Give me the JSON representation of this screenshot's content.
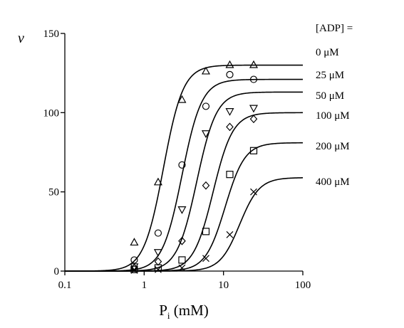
{
  "chart_data": {
    "type": "scatter",
    "x_scale": "log",
    "xlim": [
      0.1,
      100
    ],
    "ylim": [
      0,
      150
    ],
    "xlabel_base": "P",
    "xlabel_sub": "i",
    "xlabel_rest": " (mM)",
    "ylabel": "v",
    "x_ticks": [
      {
        "value": 0.1,
        "label": "0.1"
      },
      {
        "value": 1,
        "label": "1"
      },
      {
        "value": 10,
        "label": "10"
      },
      {
        "value": 100,
        "label": "100"
      }
    ],
    "y_ticks": [
      {
        "value": 0,
        "label": "0"
      },
      {
        "value": 50,
        "label": "50"
      },
      {
        "value": 100,
        "label": "100"
      },
      {
        "value": 150,
        "label": "150"
      }
    ],
    "legend_title": "[ADP] =",
    "grid": false,
    "series": [
      {
        "name": "0 μM",
        "marker": "triangle-up",
        "fit": {
          "vmax": 130,
          "k": 1.75,
          "n": 3.5
        },
        "points": [
          [
            0.75,
            18
          ],
          [
            1.5,
            56
          ],
          [
            3.0,
            108
          ],
          [
            6.0,
            126
          ],
          [
            12.0,
            130
          ],
          [
            24.0,
            130
          ]
        ]
      },
      {
        "name": "25 μM",
        "marker": "circle",
        "fit": {
          "vmax": 121,
          "k": 3.0,
          "n": 3.5
        },
        "points": [
          [
            0.75,
            7
          ],
          [
            1.5,
            24
          ],
          [
            3.0,
            67
          ],
          [
            6.0,
            104
          ],
          [
            12.0,
            124
          ],
          [
            24.0,
            121
          ]
        ]
      },
      {
        "name": "50 μM",
        "marker": "triangle-down",
        "fit": {
          "vmax": 113,
          "k": 4.6,
          "n": 3.5
        },
        "points": [
          [
            0.75,
            3
          ],
          [
            1.5,
            12
          ],
          [
            3.0,
            39
          ],
          [
            6.0,
            87
          ],
          [
            12.0,
            101
          ],
          [
            24.0,
            103
          ]
        ]
      },
      {
        "name": "100 μM",
        "marker": "diamond",
        "fit": {
          "vmax": 100,
          "k": 7.4,
          "n": 3.5
        },
        "points": [
          [
            0.75,
            2
          ],
          [
            1.5,
            6
          ],
          [
            3.0,
            19
          ],
          [
            6.0,
            54
          ],
          [
            12.0,
            91
          ],
          [
            24.0,
            96
          ]
        ]
      },
      {
        "name": "200 μM",
        "marker": "square",
        "fit": {
          "vmax": 81,
          "k": 10.5,
          "n": 3.5
        },
        "points": [
          [
            0.75,
            1
          ],
          [
            1.5,
            2
          ],
          [
            3.0,
            7
          ],
          [
            6.0,
            25
          ],
          [
            12.0,
            61
          ],
          [
            24.0,
            76
          ]
        ]
      },
      {
        "name": "400 μM",
        "marker": "x",
        "fit": {
          "vmax": 59,
          "k": 16.0,
          "n": 3.5
        },
        "points": [
          [
            0.75,
            0.5
          ],
          [
            1.5,
            1
          ],
          [
            3.0,
            2
          ],
          [
            6.0,
            8
          ],
          [
            12.0,
            23
          ],
          [
            24.0,
            50
          ]
        ]
      }
    ]
  }
}
